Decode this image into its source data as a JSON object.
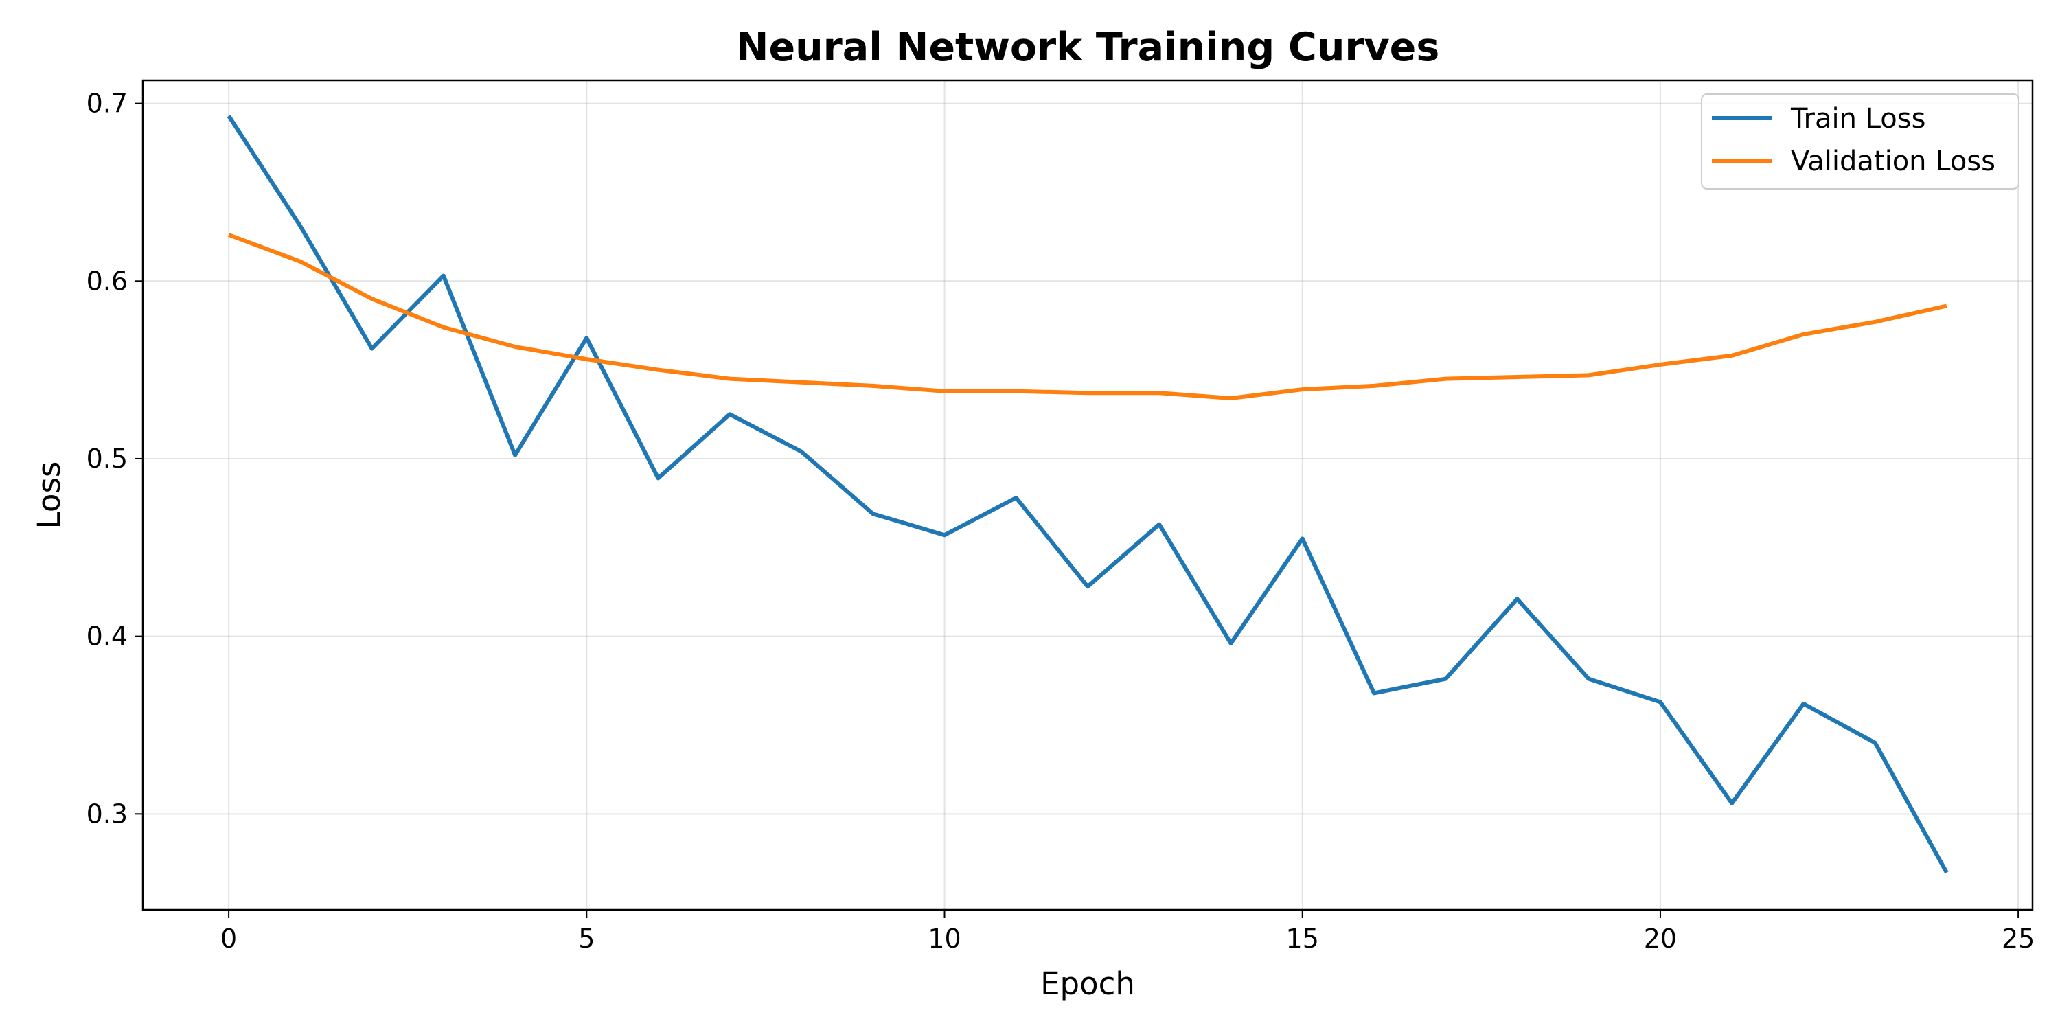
{
  "chart_data": {
    "type": "line",
    "title": "Neural Network Training Curves",
    "xlabel": "Epoch",
    "ylabel": "Loss",
    "xlim": [
      -1.2,
      25.2
    ],
    "ylim": [
      0.246,
      0.713
    ],
    "xticks": [
      0,
      5,
      10,
      15,
      20,
      25
    ],
    "yticks": [
      0.3,
      0.4,
      0.5,
      0.6,
      0.7
    ],
    "grid": true,
    "legend_position": "top-right",
    "x": [
      0,
      1,
      2,
      3,
      4,
      5,
      6,
      7,
      8,
      9,
      10,
      11,
      12,
      13,
      14,
      15,
      16,
      17,
      18,
      19,
      20,
      21,
      22,
      23,
      24
    ],
    "series": [
      {
        "name": "Train Loss",
        "color": "#1f77b4",
        "values": [
          0.693,
          0.631,
          0.562,
          0.603,
          0.502,
          0.568,
          0.489,
          0.525,
          0.504,
          0.469,
          0.457,
          0.478,
          0.428,
          0.463,
          0.396,
          0.455,
          0.368,
          0.376,
          0.421,
          0.376,
          0.363,
          0.306,
          0.362,
          0.34,
          0.267
        ]
      },
      {
        "name": "Validation Loss",
        "color": "#ff7f0e",
        "values": [
          0.626,
          0.611,
          0.59,
          0.574,
          0.563,
          0.556,
          0.55,
          0.545,
          0.543,
          0.541,
          0.538,
          0.538,
          0.537,
          0.537,
          0.534,
          0.539,
          0.541,
          0.545,
          0.546,
          0.547,
          0.553,
          0.558,
          0.57,
          0.577,
          0.586
        ]
      }
    ]
  }
}
